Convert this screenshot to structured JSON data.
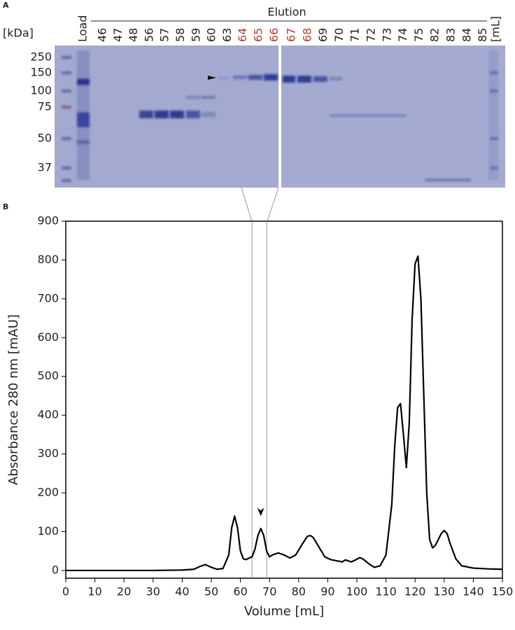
{
  "gel": {
    "label": "A",
    "unit": "[kDa]",
    "markers": [
      "250",
      "150",
      "100",
      "75",
      "50",
      "37"
    ],
    "load": "Load",
    "elution": "Elution",
    "lanes": [
      {
        "label": "46",
        "color": "#222222"
      },
      {
        "label": "47",
        "color": "#222222"
      },
      {
        "label": "48",
        "color": "#222222"
      },
      {
        "label": "56",
        "color": "#222222"
      },
      {
        "label": "57",
        "color": "#222222"
      },
      {
        "label": "58",
        "color": "#222222"
      },
      {
        "label": "59",
        "color": "#222222"
      },
      {
        "label": "60",
        "color": "#222222"
      },
      {
        "label": "63",
        "color": "#222222"
      },
      {
        "label": "64",
        "color": "#c0392b"
      },
      {
        "label": "65",
        "color": "#c0392b"
      },
      {
        "label": "66",
        "color": "#c0392b"
      },
      {
        "label": "67",
        "color": "#c0392b"
      },
      {
        "label": "68",
        "color": "#c0392b"
      },
      {
        "label": "69",
        "color": "#222222"
      },
      {
        "label": "70",
        "color": "#222222"
      },
      {
        "label": "71",
        "color": "#222222"
      },
      {
        "label": "72",
        "color": "#222222"
      },
      {
        "label": "73",
        "color": "#222222"
      },
      {
        "label": "74",
        "color": "#222222"
      },
      {
        "label": "75",
        "color": "#222222"
      },
      {
        "label": "82",
        "color": "#222222"
      },
      {
        "label": "83",
        "color": "#222222"
      },
      {
        "label": "84",
        "color": "#222222"
      },
      {
        "label": "85",
        "color": "#222222"
      }
    ],
    "end_label": "[mL]"
  },
  "chart_data": {
    "type": "line",
    "panel_label": "B",
    "x_label": "Volume [mL]",
    "y_label": "Absorbance 280 nm [mAU]",
    "xlim": [
      0,
      150
    ],
    "ylim": [
      -20,
      900
    ],
    "xticks": [
      0,
      10,
      20,
      30,
      40,
      50,
      60,
      70,
      80,
      90,
      100,
      110,
      120,
      130,
      140,
      150
    ],
    "yticks": [
      0,
      100,
      200,
      300,
      400,
      500,
      600,
      700,
      800,
      900
    ],
    "vlines": [
      64,
      69
    ],
    "markers": [
      {
        "x": 67,
        "y": 140
      }
    ],
    "series": [
      {
        "color": "#000000",
        "x": [
          0,
          10,
          20,
          30,
          40,
          44,
          46,
          48,
          50,
          52,
          54,
          56,
          57,
          58,
          59,
          60,
          61,
          62,
          63,
          64,
          65,
          66,
          67,
          68,
          69,
          70,
          71,
          73,
          75,
          77,
          79,
          81,
          83,
          84,
          85,
          87,
          89,
          91,
          93,
          95,
          96,
          97,
          98,
          99,
          101,
          102,
          104,
          106,
          108,
          110,
          112,
          113,
          114,
          115,
          116,
          117,
          118,
          119,
          120,
          121,
          122,
          123,
          124,
          125,
          126,
          127,
          128,
          129,
          130,
          131,
          132,
          134,
          136,
          140,
          145,
          150
        ],
        "values": [
          0,
          0,
          0,
          0,
          1,
          3,
          10,
          15,
          8,
          3,
          5,
          40,
          110,
          140,
          110,
          50,
          30,
          28,
          32,
          35,
          55,
          90,
          108,
          90,
          50,
          35,
          40,
          45,
          40,
          32,
          40,
          65,
          88,
          90,
          85,
          60,
          35,
          28,
          25,
          22,
          27,
          25,
          22,
          25,
          33,
          30,
          18,
          8,
          12,
          40,
          170,
          320,
          420,
          430,
          350,
          265,
          380,
          650,
          790,
          810,
          700,
          450,
          200,
          80,
          58,
          65,
          80,
          95,
          103,
          95,
          70,
          30,
          12,
          6,
          4,
          3
        ]
      }
    ]
  }
}
